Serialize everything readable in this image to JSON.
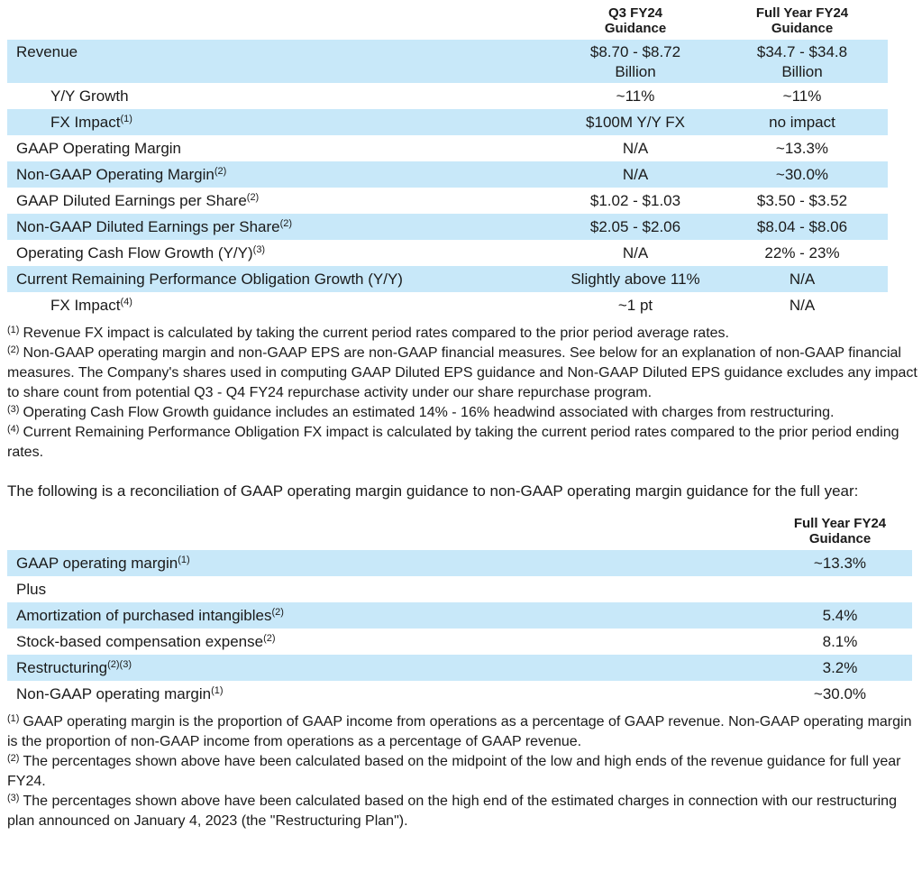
{
  "page": {
    "background_color": "#ffffff",
    "text_color": "#1a1a1a",
    "stripe_color": "#c8e8f9"
  },
  "guidance_table": {
    "headers": {
      "q3": "Q3 FY24\nGuidance",
      "fy": "Full Year FY24\nGuidance"
    },
    "rows": [
      {
        "label": "Revenue",
        "sup": "",
        "q3": "$8.70 - $8.72\nBillion",
        "fy": "$34.7 - $34.8\nBillion"
      },
      {
        "label": "Y/Y Growth",
        "sup": "",
        "q3": "~11%",
        "fy": "~11%"
      },
      {
        "label": "FX Impact",
        "sup": "(1)",
        "q3": "$100M Y/Y FX",
        "fy": "no impact"
      },
      {
        "label": "GAAP Operating Margin",
        "sup": "",
        "q3": "N/A",
        "fy": "~13.3%"
      },
      {
        "label": "Non-GAAP Operating Margin",
        "sup": "(2)",
        "q3": "N/A",
        "fy": "~30.0%"
      },
      {
        "label": "GAAP Diluted Earnings per Share",
        "sup": "(2)",
        "q3": "$1.02 - $1.03",
        "fy": "$3.50 - $3.52"
      },
      {
        "label": "Non-GAAP Diluted Earnings per Share",
        "sup": "(2)",
        "q3": "$2.05 - $2.06",
        "fy": "$8.04 - $8.06"
      },
      {
        "label": "Operating Cash Flow Growth (Y/Y)",
        "sup": "(3)",
        "q3": "N/A",
        "fy": "22% - 23%"
      },
      {
        "label": "Current Remaining Performance Obligation Growth (Y/Y)",
        "sup": "",
        "q3": "Slightly above 11%",
        "fy": "N/A"
      },
      {
        "label": "FX Impact",
        "sup": "(4)",
        "q3": "~1 pt",
        "fy": "N/A"
      }
    ],
    "footnotes": [
      {
        "marker": "(1)",
        "text": "Revenue FX impact is calculated by taking the current period rates compared to the prior period average rates."
      },
      {
        "marker": "(2)",
        "text": "Non-GAAP operating margin and non-GAAP EPS are non-GAAP financial measures. See below for an explanation of non-GAAP financial measures. The Company's shares used in computing GAAP Diluted EPS guidance and Non-GAAP Diluted EPS guidance excludes any impact to share count from potential Q3 - Q4 FY24 repurchase activity under our share repurchase program."
      },
      {
        "marker": "(3)",
        "text": "Operating Cash Flow Growth guidance includes an estimated 14% - 16% headwind associated with charges from restructuring."
      },
      {
        "marker": "(4)",
        "text": "Current Remaining Performance Obligation FX impact is calculated by taking the current period rates compared to the prior period ending rates."
      }
    ]
  },
  "paragraph": "The following is a reconciliation of GAAP operating margin guidance to non-GAAP operating margin guidance for the full year:",
  "reconciliation_table": {
    "header": "Full Year FY24\nGuidance",
    "rows": [
      {
        "label": "GAAP operating margin",
        "sup": "(1)",
        "value": "~13.3%"
      },
      {
        "label": "Plus",
        "sup": "",
        "value": ""
      },
      {
        "label": "Amortization of purchased intangibles",
        "sup": "(2)",
        "value": "5.4%"
      },
      {
        "label": "Stock-based compensation expense",
        "sup": "(2)",
        "value": "8.1%"
      },
      {
        "label": "Restructuring",
        "sup": "(2)(3)",
        "value": "3.2%"
      },
      {
        "label": "Non-GAAP operating margin",
        "sup": "(1)",
        "value": "~30.0%"
      }
    ],
    "footnotes": [
      {
        "marker": "(1)",
        "text": "GAAP operating margin is the proportion of GAAP income from operations as a percentage of GAAP revenue. Non-GAAP operating margin is the proportion of non-GAAP income from operations as a percentage of GAAP revenue."
      },
      {
        "marker": "(2)",
        "text": "The percentages shown above have been calculated based on the midpoint of the low and high ends of the revenue guidance for full year FY24."
      },
      {
        "marker": "(3)",
        "text": "The percentages shown above have been calculated based on the high end of the estimated charges in connection with our restructuring plan announced on January 4, 2023 (the \"Restructuring Plan\")."
      }
    ]
  }
}
